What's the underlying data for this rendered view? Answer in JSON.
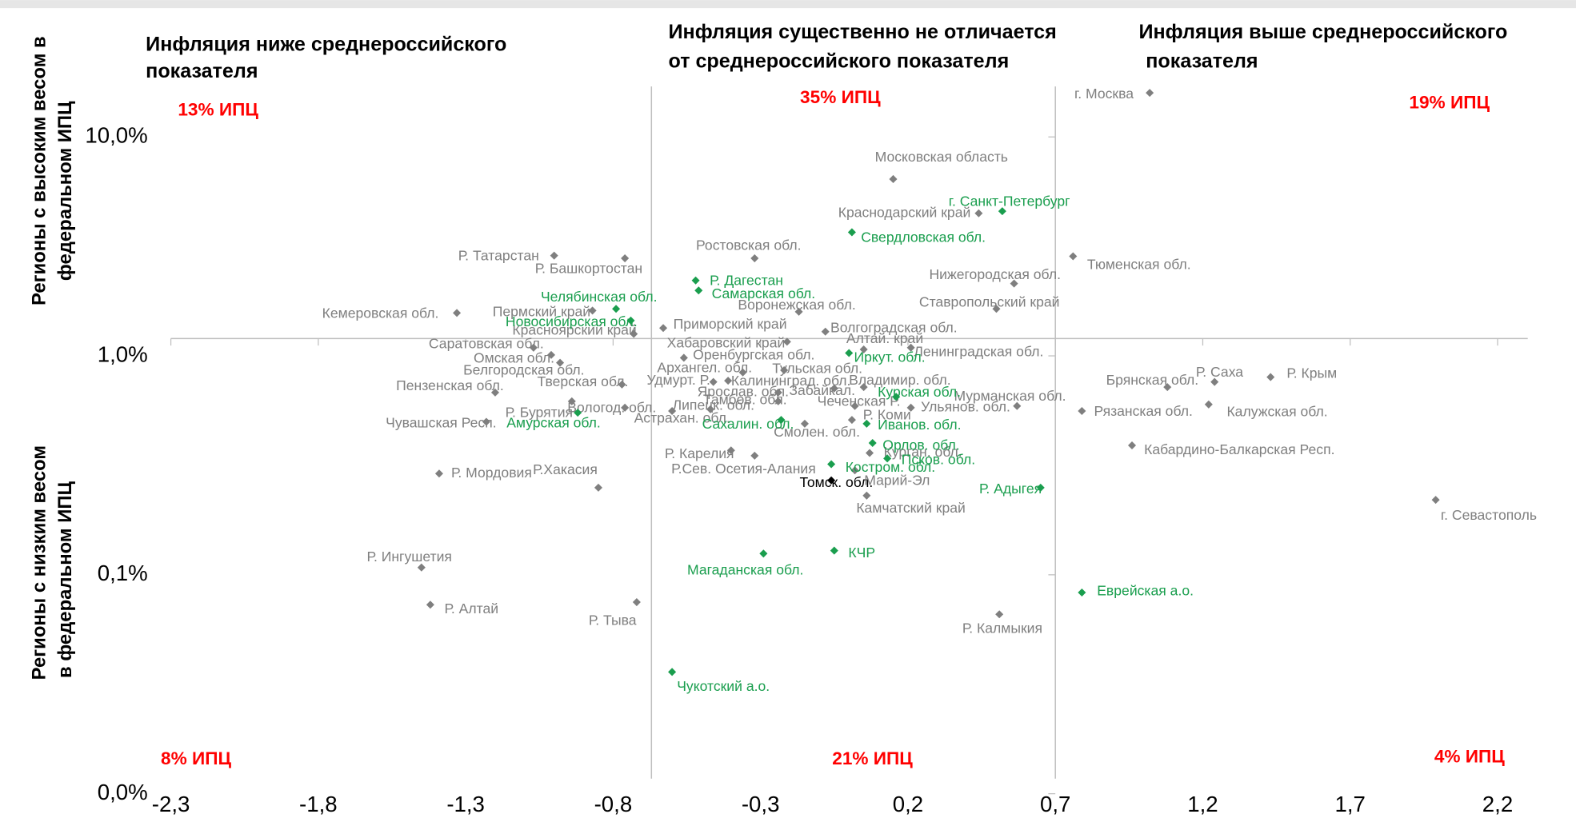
{
  "chart_data": {
    "type": "scatter",
    "headers": [
      [
        "Инфляция ниже среднероссийского",
        "показателя"
      ],
      [
        "Инфляция существенно не отличается",
        "от среднероссийского показателя"
      ],
      [
        "Инфляция выше среднероссийского",
        "показателя"
      ]
    ],
    "annotations": [
      "13% ИПЦ",
      "35% ИПЦ",
      "19% ИПЦ",
      "8% ИПЦ",
      "21% ИПЦ",
      "4% ИПЦ"
    ],
    "y_labels": [
      [
        "Регионы с высоким весом в",
        "федеральном ИПЦ"
      ],
      [
        "Регионы с низким весом",
        "в федеральном ИПЦ"
      ]
    ],
    "xlim": [
      -2.3,
      2.2
    ],
    "ylim": [
      0.01,
      17
    ],
    "log_y": true,
    "xticks": [
      {
        "value": -2.3,
        "label": "-2,3"
      },
      {
        "value": -1.8,
        "label": "-1,8"
      },
      {
        "value": -1.3,
        "label": "-1,3"
      },
      {
        "value": -0.8,
        "label": "-0,8"
      },
      {
        "value": -0.3,
        "label": "-0,3"
      },
      {
        "value": 0.2,
        "label": "0,2"
      },
      {
        "value": 0.7,
        "label": "0,7"
      },
      {
        "value": 1.2,
        "label": "1,2"
      },
      {
        "value": 1.7,
        "label": "1,7"
      },
      {
        "value": 2.2,
        "label": "2,2"
      }
    ],
    "yticks": [
      {
        "value": 0.01,
        "label": "0,0%"
      },
      {
        "value": 0.1,
        "label": "0,1%"
      },
      {
        "value": 1,
        "label": "1,0%"
      },
      {
        "value": 10,
        "label": "10,0%"
      }
    ],
    "hline": 1.2,
    "vlines": [
      -0.67,
      0.7
    ],
    "points": [
      {
        "label": "г. Москва",
        "x": 1.02,
        "y": 15.9,
        "color": "#7f7f7f"
      },
      {
        "label": "Московская область",
        "x": 0.15,
        "y": 6.42,
        "color": "#7f7f7f"
      },
      {
        "label": "Краснодарский край",
        "x": 0.44,
        "y": 4.48,
        "color": "#7f7f7f"
      },
      {
        "label": "Р. Татарстан",
        "x": -1.0,
        "y": 2.87,
        "color": "#7f7f7f"
      },
      {
        "label": "Р. Башкортостан",
        "x": -0.76,
        "y": 2.79,
        "color": "#7f7f7f"
      },
      {
        "label": "Ростовская обл.",
        "x": -0.32,
        "y": 2.79,
        "color": "#7f7f7f"
      },
      {
        "label": "Тюменская обл.",
        "x": 0.76,
        "y": 2.85,
        "color": "#7f7f7f"
      },
      {
        "label": "Нижегородская обл.",
        "x": 0.56,
        "y": 2.14,
        "color": "#7f7f7f"
      },
      {
        "label": "Ставропольский край",
        "x": 0.5,
        "y": 1.64,
        "color": "#7f7f7f"
      },
      {
        "label": "Воронежская обл.",
        "x": -0.17,
        "y": 1.59,
        "color": "#7f7f7f"
      },
      {
        "label": "Кемеровская обл.",
        "x": -1.33,
        "y": 1.57,
        "color": "#7f7f7f"
      },
      {
        "label": "Пермский край",
        "x": -0.87,
        "y": 1.61,
        "color": "#7f7f7f"
      },
      {
        "label": "Красноярский край",
        "x": -0.73,
        "y": 1.26,
        "color": "#7f7f7f"
      },
      {
        "label": "Приморский край",
        "x": -0.63,
        "y": 1.34,
        "color": "#7f7f7f"
      },
      {
        "label": "Волгоградская обл.",
        "x": -0.08,
        "y": 1.29,
        "color": "#7f7f7f"
      },
      {
        "label": "Хабаровский край",
        "x": -0.21,
        "y": 1.16,
        "color": "#7f7f7f"
      },
      {
        "label": "Алтай. край",
        "x": 0.05,
        "y": 1.07,
        "color": "#7f7f7f"
      },
      {
        "label": "Ленинградская обл.",
        "x": 0.21,
        "y": 1.09,
        "color": "#7f7f7f"
      },
      {
        "label": "Саратовская обл.",
        "x": -1.07,
        "y": 1.09,
        "color": "#7f7f7f"
      },
      {
        "label": "Омская обл.",
        "x": -1.01,
        "y": 1.01,
        "color": "#7f7f7f"
      },
      {
        "label": "Оренбургская обл.",
        "x": -0.56,
        "y": 0.98,
        "color": "#7f7f7f"
      },
      {
        "label": "Белгородская обл.",
        "x": -0.98,
        "y": 0.93,
        "color": "#7f7f7f"
      },
      {
        "label": "Архангел. обл.",
        "x": -0.36,
        "y": 0.84,
        "color": "#7f7f7f"
      },
      {
        "label": "Тульская обл.",
        "x": -0.22,
        "y": 0.86,
        "color": "#7f7f7f"
      },
      {
        "label": "Пензенская обл.",
        "x": -1.2,
        "y": 0.68,
        "color": "#7f7f7f"
      },
      {
        "label": "Тверская обл.",
        "x": -0.77,
        "y": 0.74,
        "color": "#7f7f7f"
      },
      {
        "label": "Удмурт. Р.",
        "x": -0.46,
        "y": 0.76,
        "color": "#7f7f7f"
      },
      {
        "label": "Калининград. обл.",
        "x": -0.41,
        "y": 0.77,
        "color": "#7f7f7f"
      },
      {
        "label": "Ярослав. обл.",
        "x": -0.24,
        "y": 0.68,
        "color": "#7f7f7f"
      },
      {
        "label": "Забайкал.",
        "x": -0.05,
        "y": 0.71,
        "color": "#7f7f7f"
      },
      {
        "label": "Владимир. обл.",
        "x": 0.05,
        "y": 0.72,
        "color": "#7f7f7f"
      },
      {
        "label": "Мурманская обл.",
        "x": 0.57,
        "y": 0.59,
        "color": "#7f7f7f"
      },
      {
        "label": "Тамбов. обл.",
        "x": -0.24,
        "y": 0.62,
        "color": "#7f7f7f"
      },
      {
        "label": "Липецк. обл.",
        "x": -0.47,
        "y": 0.57,
        "color": "#7f7f7f"
      },
      {
        "label": "Чеченская Р.",
        "x": 0.02,
        "y": 0.59,
        "color": "#7f7f7f"
      },
      {
        "label": "Ульянов. обл.",
        "x": 0.21,
        "y": 0.58,
        "color": "#7f7f7f"
      },
      {
        "label": "Р. Коми",
        "x": 0.01,
        "y": 0.51,
        "color": "#7f7f7f"
      },
      {
        "label": "Вологод. обл.",
        "x": -0.76,
        "y": 0.58,
        "color": "#7f7f7f"
      },
      {
        "label": "Р. Бурятия",
        "x": -0.94,
        "y": 0.62,
        "color": "#7f7f7f"
      },
      {
        "label": "Астрахан. обл.",
        "x": -0.6,
        "y": 0.56,
        "color": "#7f7f7f"
      },
      {
        "label": "Чувашская Респ.",
        "x": -1.23,
        "y": 0.5,
        "color": "#7f7f7f"
      },
      {
        "label": "Смолен. обл.",
        "x": -0.15,
        "y": 0.49,
        "color": "#7f7f7f"
      },
      {
        "label": "Р. Карелия",
        "x": -0.4,
        "y": 0.37,
        "color": "#7f7f7f"
      },
      {
        "label": "Кабардино-Балкарская Респ.",
        "x": 0.96,
        "y": 0.39,
        "color": "#7f7f7f"
      },
      {
        "label": "Р.Сев. Осетия-Алания",
        "x": -0.32,
        "y": 0.35,
        "color": "#7f7f7f"
      },
      {
        "label": "Курган. обл.",
        "x": 0.07,
        "y": 0.36,
        "color": "#7f7f7f"
      },
      {
        "label": "Томск. обл.",
        "x": -0.06,
        "y": 0.27,
        "color": "#000000"
      },
      {
        "label": "Марий-Эл",
        "x": 0.02,
        "y": 0.3,
        "color": "#7f7f7f"
      },
      {
        "label": "Камчатский край",
        "x": 0.06,
        "y": 0.23,
        "color": "#7f7f7f"
      },
      {
        "label": "Р. Мордовия",
        "x": -1.39,
        "y": 0.29,
        "color": "#7f7f7f"
      },
      {
        "label": "Р.Хакасия",
        "x": -0.85,
        "y": 0.25,
        "color": "#7f7f7f"
      },
      {
        "label": "Р. Ингушетия",
        "x": -1.45,
        "y": 0.108,
        "color": "#7f7f7f"
      },
      {
        "label": "Р. Алтай",
        "x": -1.42,
        "y": 0.073,
        "color": "#7f7f7f"
      },
      {
        "label": "Р. Тыва",
        "x": -0.72,
        "y": 0.075,
        "color": "#7f7f7f"
      },
      {
        "label": "Р. Калмыкия",
        "x": 0.51,
        "y": 0.066,
        "color": "#7f7f7f"
      },
      {
        "label": "г. Севастополь",
        "x": 1.99,
        "y": 0.22,
        "color": "#7f7f7f"
      },
      {
        "label": "Брянская обл.",
        "x": 1.08,
        "y": 0.72,
        "color": "#7f7f7f"
      },
      {
        "label": "Р. Саха",
        "x": 1.24,
        "y": 0.76,
        "color": "#7f7f7f"
      },
      {
        "label": "Р. Крым",
        "x": 1.43,
        "y": 0.8,
        "color": "#7f7f7f"
      },
      {
        "label": "Рязанская обл.",
        "x": 0.79,
        "y": 0.56,
        "color": "#7f7f7f"
      },
      {
        "label": "Калужская обл.",
        "x": 1.22,
        "y": 0.6,
        "color": "#7f7f7f"
      },
      {
        "label": "г. Санкт-Петербург",
        "x": 0.52,
        "y": 4.58,
        "color": "#1a9e4e"
      },
      {
        "label": "Свердловская обл.",
        "x": 0.01,
        "y": 3.67,
        "color": "#1a9e4e"
      },
      {
        "label": "Р. Дагестан",
        "x": -0.52,
        "y": 2.21,
        "color": "#1a9e4e"
      },
      {
        "label": "Самарская обл.",
        "x": -0.51,
        "y": 1.99,
        "color": "#1a9e4e"
      },
      {
        "label": "Челябинская обл.",
        "x": -0.79,
        "y": 1.64,
        "color": "#1a9e4e"
      },
      {
        "label": "Новосибирская обл.",
        "x": -0.74,
        "y": 1.45,
        "color": "#1a9e4e"
      },
      {
        "label": "Иркут. обл.",
        "x": 0.0,
        "y": 1.03,
        "color": "#1a9e4e"
      },
      {
        "label": "Курская обл.",
        "x": 0.16,
        "y": 0.65,
        "color": "#1a9e4e"
      },
      {
        "label": "Иванов. обл.",
        "x": 0.06,
        "y": 0.49,
        "color": "#1a9e4e"
      },
      {
        "label": "Сахалин. обл.",
        "x": -0.23,
        "y": 0.51,
        "color": "#1a9e4e"
      },
      {
        "label": "Амурская обл.",
        "x": -0.92,
        "y": 0.55,
        "color": "#1a9e4e"
      },
      {
        "label": "Орлов. обл.",
        "x": 0.08,
        "y": 0.4,
        "color": "#1a9e4e"
      },
      {
        "label": "Псков. обл.",
        "x": 0.13,
        "y": 0.34,
        "color": "#1a9e4e"
      },
      {
        "label": "Костром. обл.",
        "x": -0.06,
        "y": 0.32,
        "color": "#1a9e4e"
      },
      {
        "label": "Р. Адыгея",
        "x": 0.65,
        "y": 0.25,
        "color": "#1a9e4e"
      },
      {
        "label": "КЧР",
        "x": -0.05,
        "y": 0.129,
        "color": "#1a9e4e"
      },
      {
        "label": "Магаданская обл.",
        "x": -0.29,
        "y": 0.125,
        "color": "#1a9e4e"
      },
      {
        "label": "Еврейская а.о.",
        "x": 0.79,
        "y": 0.083,
        "color": "#1a9e4e"
      },
      {
        "label": "Чукотский а.о.",
        "x": -0.6,
        "y": 0.036,
        "color": "#1a9e4e"
      }
    ]
  }
}
